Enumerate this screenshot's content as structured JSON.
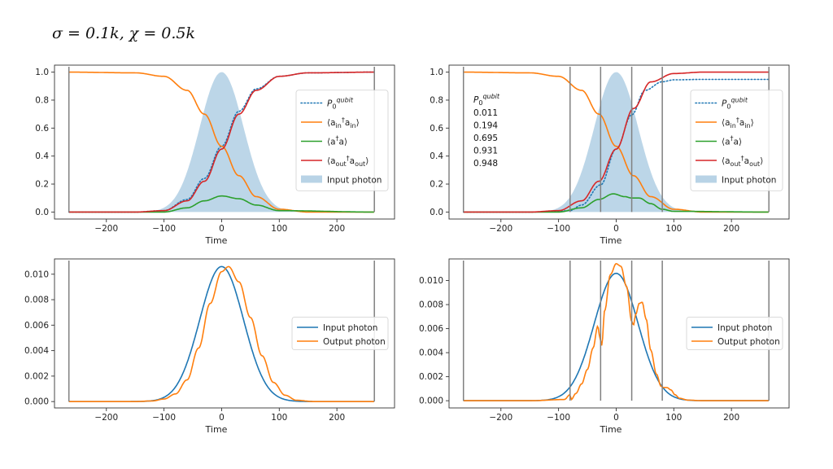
{
  "header": {
    "title": "σ = 0.1k, χ = 0.5k"
  },
  "colors": {
    "blue": "#1f77b4",
    "orange": "#ff7f0e",
    "green": "#2ca02c",
    "red": "#d62728",
    "fill": "#a6c8e0",
    "vline": "#808080"
  },
  "chart_data": [
    {
      "id": "top-left",
      "type": "line",
      "xlabel": "Time",
      "xlim": [
        -290,
        300
      ],
      "ylim": [
        -0.05,
        1.05
      ],
      "xticks": [
        -200,
        -100,
        0,
        100,
        200
      ],
      "xtick_labels": [
        "−200",
        "−100",
        "0",
        "100",
        "200"
      ],
      "yticks": [
        0.0,
        0.2,
        0.4,
        0.6,
        0.8,
        1.0
      ],
      "ytick_labels": [
        "0.0",
        "0.2",
        "0.4",
        "0.6",
        "0.8",
        "1.0"
      ],
      "vlines": [
        -265,
        265
      ],
      "legend_position": "center-right",
      "legend": [
        "P_0^{qubit}",
        "⟨a_in† a_in⟩",
        "⟨a† a⟩",
        "⟨a_out† a_out⟩",
        "Input photon"
      ],
      "series": [
        {
          "name": "P_0^{qubit}",
          "style": "dotted",
          "color": "blue",
          "x": [
            -265,
            -150,
            -100,
            -60,
            -30,
            0,
            30,
            60,
            100,
            150,
            265
          ],
          "y": [
            0,
            0,
            0.01,
            0.09,
            0.24,
            0.47,
            0.72,
            0.88,
            0.97,
            0.995,
            1.0
          ]
        },
        {
          "name": "⟨a_in† a_in⟩",
          "style": "solid",
          "color": "orange",
          "x": [
            -265,
            -150,
            -100,
            -60,
            -30,
            0,
            30,
            60,
            100,
            150,
            265
          ],
          "y": [
            1.0,
            0.995,
            0.97,
            0.87,
            0.7,
            0.47,
            0.26,
            0.11,
            0.02,
            0.0,
            0.0
          ]
        },
        {
          "name": "⟨a† a⟩",
          "style": "solid",
          "color": "green",
          "x": [
            -265,
            -100,
            -60,
            -30,
            0,
            30,
            60,
            100,
            265
          ],
          "y": [
            0,
            0,
            0.03,
            0.08,
            0.115,
            0.095,
            0.05,
            0.01,
            0
          ]
        },
        {
          "name": "⟨a_out† a_out⟩",
          "style": "solid",
          "color": "red",
          "x": [
            -265,
            -150,
            -100,
            -60,
            -30,
            0,
            30,
            60,
            100,
            150,
            265
          ],
          "y": [
            0,
            0,
            0.01,
            0.08,
            0.22,
            0.45,
            0.7,
            0.87,
            0.97,
            0.995,
            1.0
          ]
        },
        {
          "name": "Input photon",
          "style": "fill",
          "color": "fill",
          "gaussian": {
            "mu": 0,
            "sigma": 38,
            "peak": 1.0
          }
        }
      ]
    },
    {
      "id": "top-right",
      "type": "line",
      "xlabel": "Time",
      "xlim": [
        -290,
        300
      ],
      "ylim": [
        -0.05,
        1.05
      ],
      "xticks": [
        -200,
        -100,
        0,
        100,
        200
      ],
      "xtick_labels": [
        "−200",
        "−100",
        "0",
        "100",
        "200"
      ],
      "yticks": [
        0.0,
        0.2,
        0.4,
        0.6,
        0.8,
        1.0
      ],
      "ytick_labels": [
        "0.0",
        "0.2",
        "0.4",
        "0.6",
        "0.8",
        "1.0"
      ],
      "vlines": [
        -265,
        -80,
        -27,
        27,
        80,
        265
      ],
      "legend_position": "center-right",
      "legend": [
        "P_0^{qubit}",
        "⟨a_in† a_in⟩",
        "⟨a† a⟩",
        "⟨a_out† a_out⟩",
        "Input photon"
      ],
      "annotation": {
        "header": "P_0^{qubit}",
        "values": [
          "0.011",
          "0.194",
          "0.695",
          "0.931",
          "0.948"
        ]
      },
      "series": [
        {
          "name": "P_0^{qubit}",
          "style": "dotted",
          "color": "blue",
          "x": [
            -265,
            -150,
            -100,
            -80,
            -60,
            -27,
            0,
            27,
            50,
            80,
            100,
            150,
            265
          ],
          "y": [
            0,
            0,
            0.005,
            0.011,
            0.05,
            0.194,
            0.45,
            0.695,
            0.87,
            0.931,
            0.945,
            0.948,
            0.948
          ]
        },
        {
          "name": "⟨a_in† a_in⟩",
          "style": "solid",
          "color": "orange",
          "x": [
            -265,
            -150,
            -100,
            -60,
            -30,
            0,
            30,
            60,
            100,
            150,
            265
          ],
          "y": [
            1.0,
            0.995,
            0.97,
            0.87,
            0.7,
            0.47,
            0.26,
            0.11,
            0.02,
            0.0,
            0.0
          ]
        },
        {
          "name": "⟨a† a⟩",
          "style": "solid",
          "color": "green",
          "x": [
            -265,
            -100,
            -60,
            -30,
            -5,
            15,
            27,
            40,
            60,
            80,
            100,
            265
          ],
          "y": [
            0,
            0,
            0.03,
            0.09,
            0.13,
            0.11,
            0.1,
            0.1,
            0.06,
            0.02,
            0.005,
            0
          ]
        },
        {
          "name": "⟨a_out† a_out⟩",
          "style": "solid",
          "color": "red",
          "x": [
            -265,
            -150,
            -100,
            -60,
            -30,
            0,
            30,
            60,
            100,
            150,
            265
          ],
          "y": [
            0,
            0,
            0.01,
            0.08,
            0.22,
            0.45,
            0.74,
            0.93,
            0.99,
            1.0,
            1.0
          ]
        },
        {
          "name": "Input photon",
          "style": "fill",
          "color": "fill",
          "gaussian": {
            "mu": 0,
            "sigma": 38,
            "peak": 1.0
          }
        }
      ]
    },
    {
      "id": "bottom-left",
      "type": "line",
      "xlabel": "Time",
      "xlim": [
        -290,
        300
      ],
      "ylim": [
        -0.0005,
        0.0112
      ],
      "xticks": [
        -200,
        -100,
        0,
        100,
        200
      ],
      "xtick_labels": [
        "−200",
        "−100",
        "0",
        "100",
        "200"
      ],
      "yticks": [
        0.0,
        0.002,
        0.004,
        0.006,
        0.008,
        0.01
      ],
      "ytick_labels": [
        "0.000",
        "0.002",
        "0.004",
        "0.006",
        "0.008",
        "0.010"
      ],
      "vlines": [
        -265,
        265
      ],
      "legend_position": "center-right",
      "legend": [
        "Input photon",
        "Output photon"
      ],
      "series": [
        {
          "name": "Input photon",
          "style": "solid",
          "color": "blue",
          "gaussian": {
            "mu": 0,
            "sigma": 38,
            "peak": 0.0106
          }
        },
        {
          "name": "Output photon",
          "style": "solid",
          "color": "orange",
          "x": [
            -265,
            -150,
            -120,
            -100,
            -80,
            -60,
            -40,
            -20,
            0,
            12,
            30,
            50,
            70,
            90,
            110,
            130,
            160,
            265
          ],
          "y": [
            0,
            0,
            5e-05,
            0.0002,
            0.0006,
            0.0017,
            0.0042,
            0.0077,
            0.0102,
            0.0106,
            0.0094,
            0.0066,
            0.0036,
            0.0015,
            0.0005,
            0.0001,
            0,
            0
          ]
        }
      ]
    },
    {
      "id": "bottom-right",
      "type": "line",
      "xlabel": "Time",
      "xlim": [
        -290,
        300
      ],
      "ylim": [
        -0.0006,
        0.0118
      ],
      "xticks": [
        -200,
        -100,
        0,
        100,
        200
      ],
      "xtick_labels": [
        "−200",
        "−100",
        "0",
        "100",
        "200"
      ],
      "yticks": [
        0.0,
        0.002,
        0.004,
        0.006,
        0.008,
        0.01
      ],
      "ytick_labels": [
        "0.000",
        "0.002",
        "0.004",
        "0.006",
        "0.008",
        "0.010"
      ],
      "vlines": [
        -265,
        -80,
        -27,
        27,
        80,
        265
      ],
      "legend_position": "center-right",
      "legend": [
        "Input photon",
        "Output photon"
      ],
      "series": [
        {
          "name": "Input photon",
          "style": "solid",
          "color": "blue",
          "gaussian": {
            "mu": 0,
            "sigma": 38,
            "peak": 0.0106
          }
        },
        {
          "name": "Output photon",
          "style": "solid",
          "color": "orange",
          "x": [
            -265,
            -150,
            -90,
            -80,
            -78,
            -70,
            -60,
            -50,
            -40,
            -32,
            -28,
            -25,
            -20,
            -10,
            0,
            8,
            18,
            27,
            30,
            34,
            40,
            45,
            52,
            60,
            70,
            78,
            82,
            88,
            95,
            102,
            110,
            125,
            150,
            265
          ],
          "y": [
            0,
            0,
            0.0001,
            0.0005,
            0.0001,
            0.0006,
            0.0014,
            0.0026,
            0.0044,
            0.0062,
            0.0052,
            0.0046,
            0.0075,
            0.0105,
            0.0114,
            0.0112,
            0.0095,
            0.0066,
            0.0063,
            0.0072,
            0.0081,
            0.0082,
            0.0068,
            0.0042,
            0.0022,
            0.0012,
            0.0011,
            0.0011,
            0.0009,
            0.0005,
            0.0002,
            5e-05,
            0,
            0
          ]
        }
      ]
    }
  ]
}
